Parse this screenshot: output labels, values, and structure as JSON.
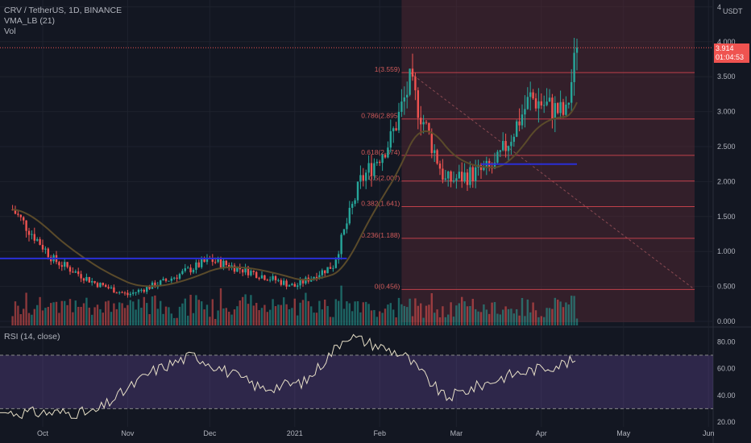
{
  "legend": {
    "symbol": "CRV / TetherUS, 1D, BINANCE",
    "indicator": "VMA_LB (21)",
    "volume": "Vol",
    "rsi": "RSI (14, close)"
  },
  "price_axis": {
    "unit": "USDT",
    "ticks": [
      "4",
      "4.000",
      "3.500",
      "3.000",
      "2.500",
      "2.000",
      "1.500",
      "1.000",
      "0.500",
      "0.000"
    ]
  },
  "current_price": {
    "value": "3.914",
    "countdown": "01:04:53"
  },
  "rsi_axis": {
    "ticks": [
      "80.00",
      "60.00",
      "40.00",
      "20.00"
    ]
  },
  "time_axis": {
    "labels": [
      "Oct",
      "Nov",
      "Dec",
      "2021",
      "Feb",
      "Mar",
      "Apr",
      "May",
      "Jun"
    ]
  },
  "fib_labels": [
    "1(3.559)",
    "0.786(2.895)",
    "0.618(2.374)",
    "0.5(2.007)",
    "0.382(1.641)",
    "0.236(1.188)",
    "0(0.456)"
  ],
  "colors": {
    "background": "#131722",
    "up": "#26a69a",
    "down": "#ef5350",
    "support": "#2a2fd6",
    "vma": "#5a4a2a",
    "fib": "#c0404a",
    "rsi_line": "#e8e0c8",
    "rsi_band": "#7e57c2"
  },
  "chart_data": {
    "type": "candlestick",
    "title": "CRV / TetherUS, 1D, BINANCE",
    "ylabel": "USDT",
    "ylim": [
      0,
      4.6
    ],
    "fibonacci": {
      "levels": [
        1,
        0.786,
        0.618,
        0.5,
        0.382,
        0.236,
        0
      ],
      "prices": [
        3.559,
        2.895,
        2.374,
        2.007,
        1.641,
        1.188,
        0.456
      ]
    },
    "support_lines": [
      {
        "from": "2020-09",
        "to": "2021-01",
        "price": 0.9
      },
      {
        "from": "2021-03",
        "to": "2021-04",
        "price": 2.25
      }
    ],
    "last_price": 3.914,
    "price_path": [
      {
        "date": "2020-09-20",
        "close": 1.6
      },
      {
        "date": "2020-10-05",
        "close": 0.88
      },
      {
        "date": "2020-10-20",
        "close": 0.55
      },
      {
        "date": "2020-11-01",
        "close": 0.38
      },
      {
        "date": "2020-11-15",
        "close": 0.58
      },
      {
        "date": "2020-12-01",
        "close": 0.88
      },
      {
        "date": "2020-12-15",
        "close": 0.72
      },
      {
        "date": "2021-01-01",
        "close": 0.5
      },
      {
        "date": "2021-01-15",
        "close": 0.8
      },
      {
        "date": "2021-01-25",
        "close": 2.0
      },
      {
        "date": "2021-02-05",
        "close": 2.6
      },
      {
        "date": "2021-02-12",
        "close": 3.4
      },
      {
        "date": "2021-02-25",
        "close": 2.0
      },
      {
        "date": "2021-03-15",
        "close": 2.2
      },
      {
        "date": "2021-03-28",
        "close": 3.2
      },
      {
        "date": "2021-04-10",
        "close": 2.95
      },
      {
        "date": "2021-04-14",
        "close": 3.914
      }
    ],
    "rsi": {
      "length": 14,
      "ylim": [
        20,
        90
      ],
      "bands": [
        30,
        70
      ],
      "path": [
        {
          "date": "2020-09-25",
          "value": 27
        },
        {
          "date": "2020-10-20",
          "value": 27
        },
        {
          "date": "2020-11-10",
          "value": 58
        },
        {
          "date": "2020-11-25",
          "value": 70
        },
        {
          "date": "2020-12-20",
          "value": 45
        },
        {
          "date": "2021-01-05",
          "value": 50
        },
        {
          "date": "2021-01-20",
          "value": 85
        },
        {
          "date": "2021-02-10",
          "value": 70
        },
        {
          "date": "2021-02-25",
          "value": 38
        },
        {
          "date": "2021-03-20",
          "value": 55
        },
        {
          "date": "2021-04-14",
          "value": 66
        }
      ]
    }
  }
}
